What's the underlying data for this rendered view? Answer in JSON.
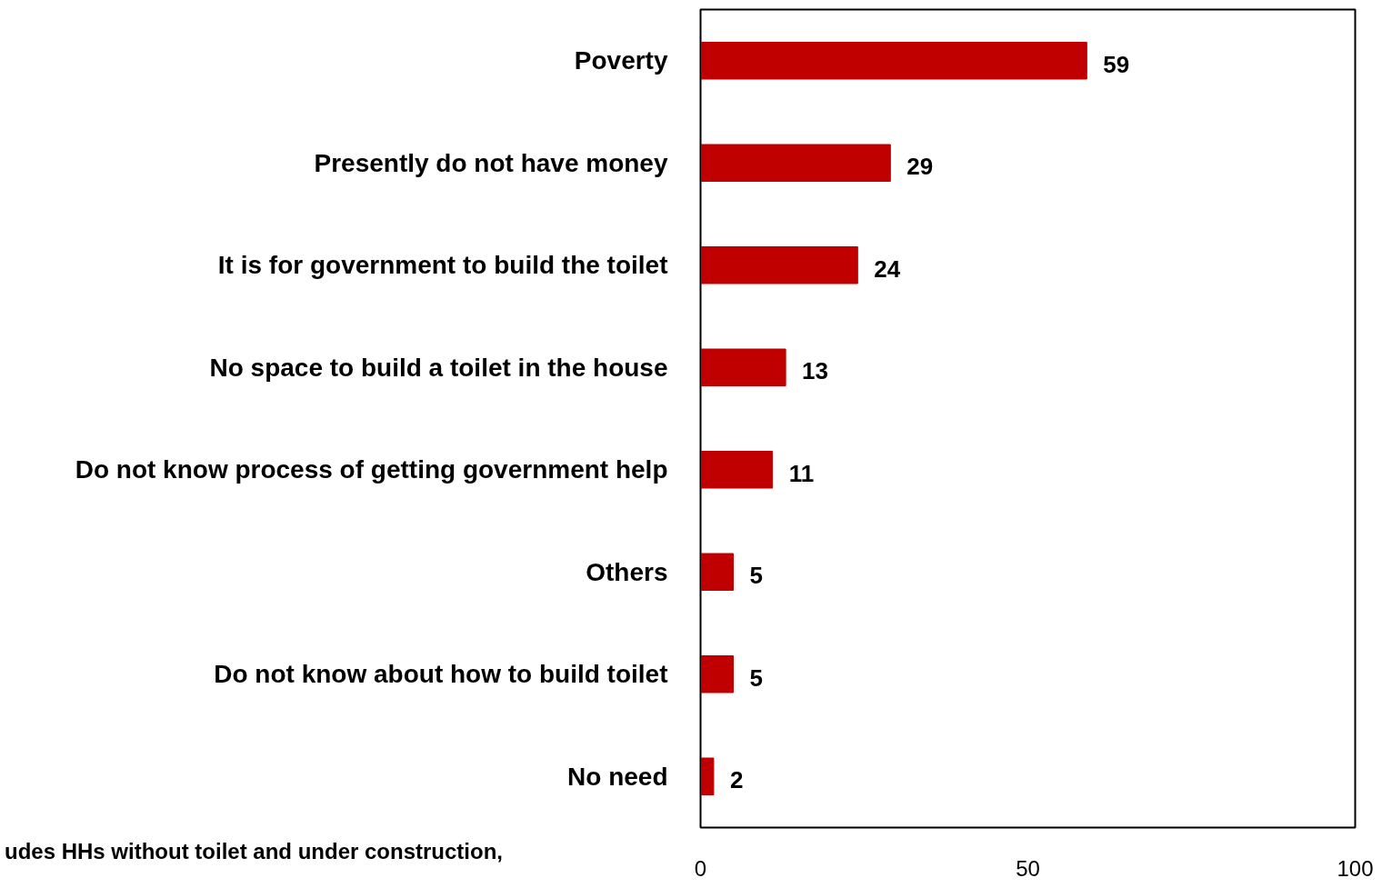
{
  "chart_data": {
    "type": "bar",
    "orientation": "horizontal",
    "categories": [
      "Poverty",
      "Presently do not have money",
      "It is for government to build the toilet",
      "No space to build a toilet in the house",
      "Do not know process of getting government help",
      "Others",
      "Do not know about how to build toilet",
      "No need"
    ],
    "values": [
      59,
      29,
      24,
      13,
      11,
      5,
      5,
      2
    ],
    "color": "#c00000",
    "xlim": [
      0,
      100
    ],
    "xticks": [
      0,
      50,
      100
    ],
    "data_labels": true,
    "grid": false,
    "annotations": [
      "udes HHs without toilet and under construction,"
    ]
  }
}
